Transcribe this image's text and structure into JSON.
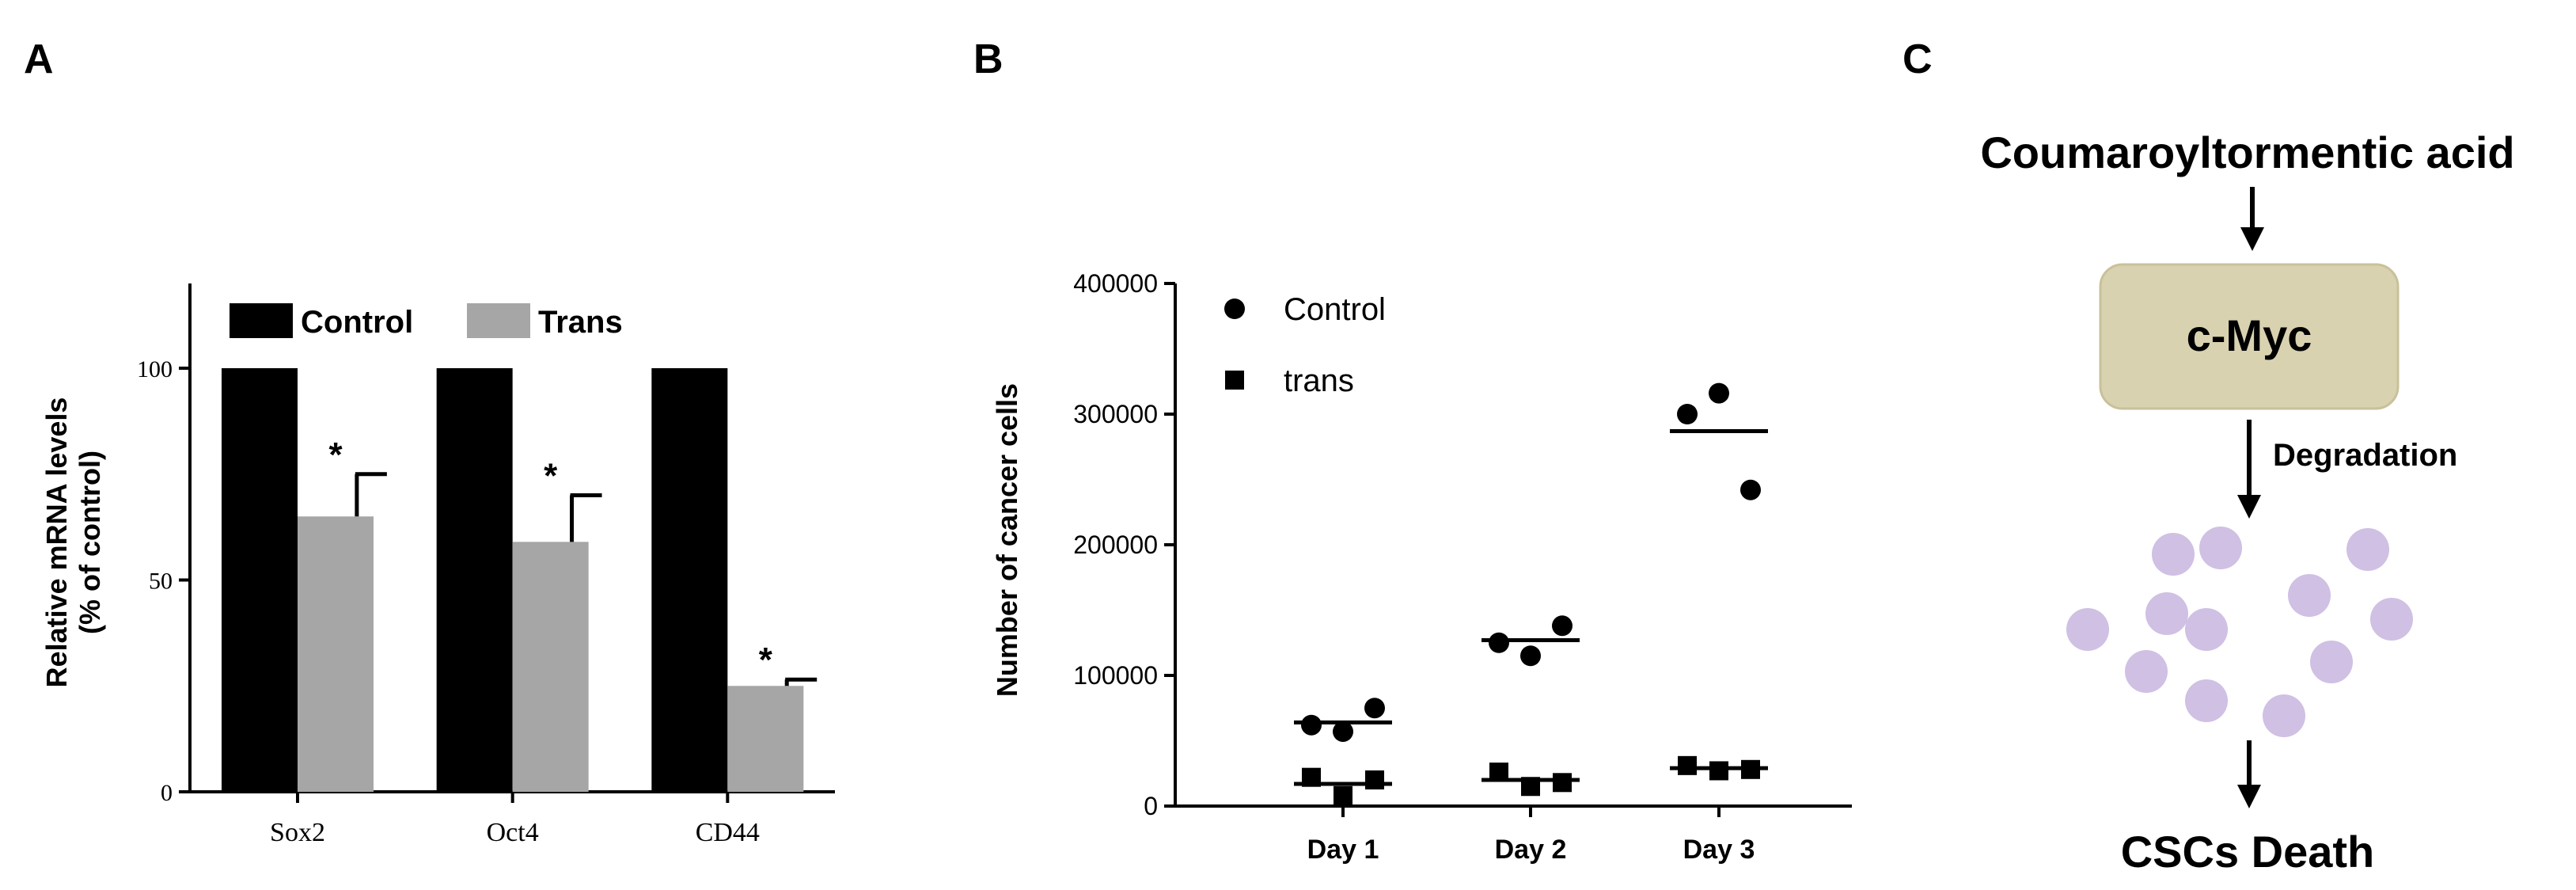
{
  "panels": {
    "a": {
      "letter": "A"
    },
    "b": {
      "letter": "B"
    },
    "c": {
      "letter": "C"
    }
  },
  "chart_data": [
    {
      "type": "bar",
      "panel": "A",
      "title": "",
      "xlabel": "",
      "ylabel": "Relative mRNA levels",
      "ylabel2": "(% of control)",
      "categories": [
        "Sox2",
        "Oct4",
        "CD44"
      ],
      "ylim": [
        0,
        120
      ],
      "yticks": [
        0,
        50,
        100
      ],
      "series": [
        {
          "name": "Control",
          "values": [
            100,
            100,
            100
          ],
          "errors": [
            0,
            0,
            0
          ],
          "color": "#000000"
        },
        {
          "name": "Trans",
          "values": [
            65,
            59,
            25
          ],
          "errors": [
            10,
            11,
            1.5
          ],
          "color": "#a6a6a6"
        }
      ],
      "annotations": [
        "*",
        "*",
        "*"
      ],
      "legend_position": "top-left"
    },
    {
      "type": "scatter",
      "panel": "B",
      "title": "",
      "xlabel": "",
      "ylabel": "Number of cancer cells",
      "categories": [
        "Day 1",
        "Day 2",
        "Day 3"
      ],
      "ylim": [
        0,
        400000
      ],
      "yticks": [
        0,
        100000,
        200000,
        300000,
        400000
      ],
      "series": [
        {
          "name": "Control",
          "marker": "circle",
          "points": [
            [
              0,
              62000
            ],
            [
              0,
              57000
            ],
            [
              0,
              75000
            ],
            [
              1,
              125000
            ],
            [
              1,
              115000
            ],
            [
              1,
              138000
            ],
            [
              2,
              300000
            ],
            [
              2,
              316000
            ],
            [
              2,
              242000
            ]
          ],
          "means": [
            64000,
            127000,
            287000
          ]
        },
        {
          "name": "trans",
          "marker": "square",
          "points": [
            [
              0,
              22000
            ],
            [
              0,
              8000
            ],
            [
              0,
              20000
            ],
            [
              1,
              26000
            ],
            [
              1,
              15000
            ],
            [
              1,
              18000
            ],
            [
              2,
              31000
            ],
            [
              2,
              27000
            ],
            [
              2,
              28000
            ]
          ],
          "means": [
            17000,
            20000,
            29000
          ]
        }
      ],
      "legend_position": "top-left"
    }
  ],
  "diagram": {
    "title": "Coumaroyltormentic acid",
    "box_label": "c-Myc",
    "box_color": "#d8d2b0",
    "box_border": "#c9c19a",
    "edge_label": "Degradation",
    "result_label": "CSCs Death",
    "dot_color": "#cfc0e4"
  }
}
